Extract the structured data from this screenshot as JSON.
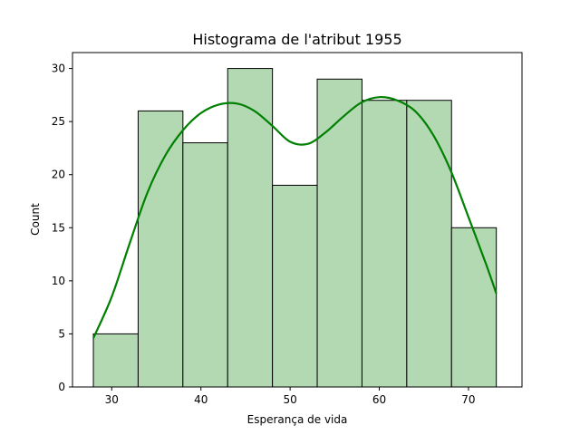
{
  "chart_data": {
    "type": "bar",
    "title": "Histograma de l'atribut 1955",
    "xlabel": "Esperança de vida",
    "ylabel": "Count",
    "bin_edges": [
      27.94,
      32.96,
      37.98,
      43.0,
      48.02,
      53.04,
      58.06,
      63.08,
      68.1,
      73.12
    ],
    "values": [
      5,
      26,
      23,
      30,
      19,
      29,
      27,
      27,
      15
    ],
    "xlim": [
      25.6,
      76.0
    ],
    "ylim": [
      0,
      31.5
    ],
    "xticks": [
      30,
      40,
      50,
      60,
      70
    ],
    "yticks": [
      0,
      5,
      10,
      15,
      20,
      25,
      30
    ],
    "grid": false,
    "kde": {
      "x": [
        27.94,
        30.0,
        32.0,
        34.0,
        36.0,
        38.0,
        40.0,
        42.0,
        44.0,
        46.0,
        48.0,
        50.0,
        52.0,
        54.0,
        56.0,
        58.0,
        60.0,
        62.0,
        64.0,
        66.0,
        68.0,
        70.0,
        72.0,
        73.12
      ],
      "y": [
        4.6,
        8.5,
        13.5,
        18.3,
        21.8,
        24.2,
        25.8,
        26.6,
        26.7,
        26.0,
        24.6,
        23.1,
        22.9,
        24.0,
        25.5,
        26.8,
        27.3,
        27.0,
        26.0,
        23.8,
        20.4,
        16.0,
        11.5,
        8.8
      ]
    },
    "colors": {
      "bar_fill": "#b3d9b3",
      "bar_edge": "#000000",
      "kde_line": "#008000"
    }
  }
}
